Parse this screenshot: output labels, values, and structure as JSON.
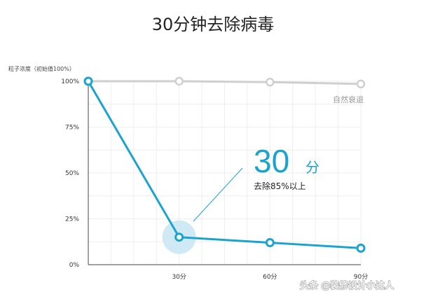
{
  "colors": {
    "main_series": "#1aa3cf",
    "natural_series": "#cfcfcf",
    "highlight": "#cfeaf5"
  },
  "chart_data": {
    "type": "line",
    "title": "30分钟去除病毒",
    "ylabel": "粒子浓度（初始值100%）",
    "xlabel": "",
    "x_ticks": [
      "30分",
      "60分",
      "90分"
    ],
    "y_ticks": [
      "0%",
      "25%",
      "50%",
      "75%",
      "100%"
    ],
    "xlim": [
      0,
      90
    ],
    "ylim": [
      0,
      100
    ],
    "grid": true,
    "series": [
      {
        "name": "自然衰退",
        "x": [
          0,
          30,
          60,
          90
        ],
        "values": [
          100,
          100,
          99.5,
          98.5
        ]
      },
      {
        "name": "",
        "x": [
          0,
          30,
          60,
          90
        ],
        "values": [
          100,
          15,
          12,
          9
        ]
      }
    ],
    "annotation": {
      "big": "30",
      "unit": "分",
      "sub": "去除85%以上"
    }
  },
  "watermark": "头条 @装修设计小达人"
}
